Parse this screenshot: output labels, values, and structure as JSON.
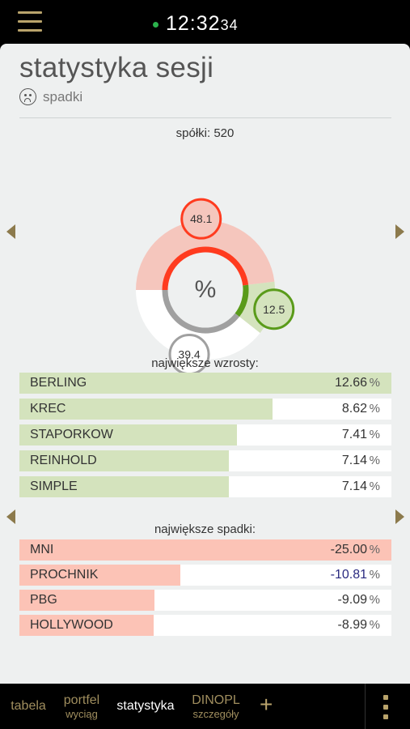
{
  "status_bar": {
    "time_main": "12:32",
    "time_seconds": "34"
  },
  "header": {
    "title": "statystyka sesji",
    "subtitle": "spadki",
    "subtitle_icon": "sad-face-icon"
  },
  "summary": {
    "count_label": "spółki: 520",
    "center_label": "%",
    "down": {
      "value": "48.1",
      "fraction": 0.481,
      "color": "#ff3b1f"
    },
    "up": {
      "value": "12.5",
      "fraction": 0.125,
      "color": "#5a9b1a"
    },
    "flat": {
      "value": "39.4",
      "fraction": 0.394,
      "color": "#a0a0a0"
    }
  },
  "gainers": {
    "label": "największe wzrosty:",
    "color": "#d4e3bd",
    "items": [
      {
        "name": "BERLING",
        "value": "12.66",
        "unit": "%",
        "fraction": 1.0
      },
      {
        "name": "KREC",
        "value": "8.62",
        "unit": "%",
        "fraction": 0.681
      },
      {
        "name": "STAPORKOW",
        "value": "7.41",
        "unit": "%",
        "fraction": 0.585
      },
      {
        "name": "REINHOLD",
        "value": "7.14",
        "unit": "%",
        "fraction": 0.564
      },
      {
        "name": "SIMPLE",
        "value": "7.14",
        "unit": "%",
        "fraction": 0.564
      }
    ]
  },
  "losers": {
    "label": "największe spadki:",
    "color": "#fcc3b6",
    "items": [
      {
        "name": "MNI",
        "value": "-25.00",
        "unit": "%",
        "fraction": 1.0,
        "value_color": "#333333"
      },
      {
        "name": "PROCHNIK",
        "value": "-10.81",
        "unit": "%",
        "fraction": 0.432,
        "value_color": "#2a2a80"
      },
      {
        "name": "PBG",
        "value": "-9.09",
        "unit": "%",
        "fraction": 0.364,
        "value_color": "#333333"
      },
      {
        "name": "HOLLYWOOD",
        "value": "-8.99",
        "unit": "%",
        "fraction": 0.36,
        "value_color": "#333333"
      }
    ]
  },
  "bottom_nav": {
    "tabs": [
      {
        "main": "tabela",
        "sub": ""
      },
      {
        "main": "portfel",
        "sub": "wyciąg"
      },
      {
        "main": "statystyka",
        "sub": "",
        "active": true
      },
      {
        "main": "DINOPL",
        "sub": "szczegóły"
      }
    ],
    "plus": "+"
  }
}
